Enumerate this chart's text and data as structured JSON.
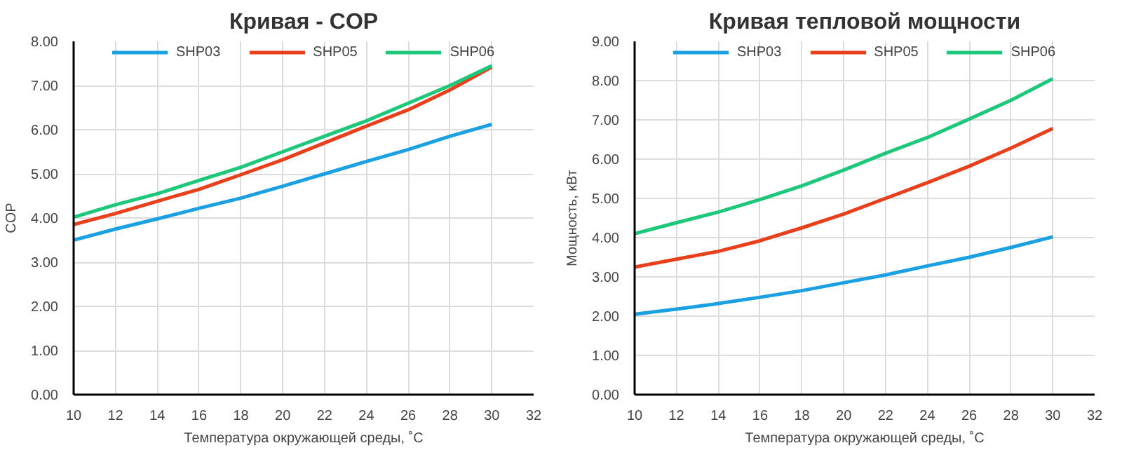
{
  "chart_data": [
    {
      "type": "line",
      "title": "Кривая - COP",
      "xlabel": "Температура окружающей среды, ˚C",
      "ylabel": "COP",
      "x": [
        10,
        12,
        14,
        16,
        18,
        20,
        22,
        24,
        26,
        28,
        30
      ],
      "xlim": [
        10,
        32
      ],
      "xticks": [
        10,
        12,
        14,
        16,
        18,
        20,
        22,
        24,
        26,
        28,
        30,
        32
      ],
      "ylim": [
        0,
        8
      ],
      "yticks": [
        {
          "value": 0,
          "label": "0.00"
        },
        {
          "value": 1,
          "label": "1.00"
        },
        {
          "value": 2,
          "label": "2.00"
        },
        {
          "value": 3,
          "label": "3.00"
        },
        {
          "value": 4,
          "label": "4.00"
        },
        {
          "value": 5,
          "label": "5.00"
        },
        {
          "value": 6,
          "label": "6.00"
        },
        {
          "value": 7,
          "label": "7.00"
        },
        {
          "value": 8,
          "label": "8.00"
        }
      ],
      "grid": true,
      "legend": "top",
      "marker": "none",
      "line_style": "solid",
      "series": [
        {
          "name": "SHP03",
          "color": "#1ba1e2",
          "values": [
            3.5,
            3.75,
            3.98,
            4.22,
            4.45,
            4.72,
            5.0,
            5.28,
            5.55,
            5.85,
            6.12
          ]
        },
        {
          "name": "SHP05",
          "color": "#e8401c",
          "values": [
            3.85,
            4.1,
            4.38,
            4.65,
            4.98,
            5.32,
            5.7,
            6.08,
            6.45,
            6.9,
            7.42
          ]
        },
        {
          "name": "SHP06",
          "color": "#1ec87a",
          "values": [
            4.02,
            4.3,
            4.55,
            4.85,
            5.15,
            5.5,
            5.85,
            6.2,
            6.6,
            7.0,
            7.45
          ]
        }
      ]
    },
    {
      "type": "line",
      "title": "Кривая тепловой мощности",
      "xlabel": "Температура окружающей среды, ˚C",
      "ylabel": "Мощность, кВт",
      "x": [
        10,
        12,
        14,
        16,
        18,
        20,
        22,
        24,
        26,
        28,
        30
      ],
      "xlim": [
        10,
        32
      ],
      "xticks": [
        10,
        12,
        14,
        16,
        18,
        20,
        22,
        24,
        26,
        28,
        30,
        32
      ],
      "ylim": [
        0,
        9
      ],
      "yticks": [
        {
          "value": 0,
          "label": "0.00"
        },
        {
          "value": 1,
          "label": "1.00"
        },
        {
          "value": 2,
          "label": "2.00"
        },
        {
          "value": 3,
          "label": "3.00"
        },
        {
          "value": 4,
          "label": "4.00"
        },
        {
          "value": 5,
          "label": "5.00"
        },
        {
          "value": 6,
          "label": "6.00"
        },
        {
          "value": 7,
          "label": "7.00"
        },
        {
          "value": 8,
          "label": "8.00"
        },
        {
          "value": 9,
          "label": "9.00"
        }
      ],
      "grid": true,
      "legend": "top",
      "marker": "none",
      "line_style": "solid",
      "series": [
        {
          "name": "SHP03",
          "color": "#1ba1e2",
          "values": [
            2.05,
            2.18,
            2.32,
            2.48,
            2.65,
            2.85,
            3.05,
            3.28,
            3.5,
            3.75,
            4.02
          ]
        },
        {
          "name": "SHP05",
          "color": "#e8401c",
          "values": [
            3.25,
            3.45,
            3.65,
            3.92,
            4.25,
            4.6,
            5.0,
            5.4,
            5.82,
            6.28,
            6.78
          ]
        },
        {
          "name": "SHP06",
          "color": "#1ec87a",
          "values": [
            4.1,
            4.38,
            4.65,
            4.97,
            5.32,
            5.72,
            6.15,
            6.55,
            7.02,
            7.5,
            8.05
          ]
        }
      ]
    }
  ]
}
